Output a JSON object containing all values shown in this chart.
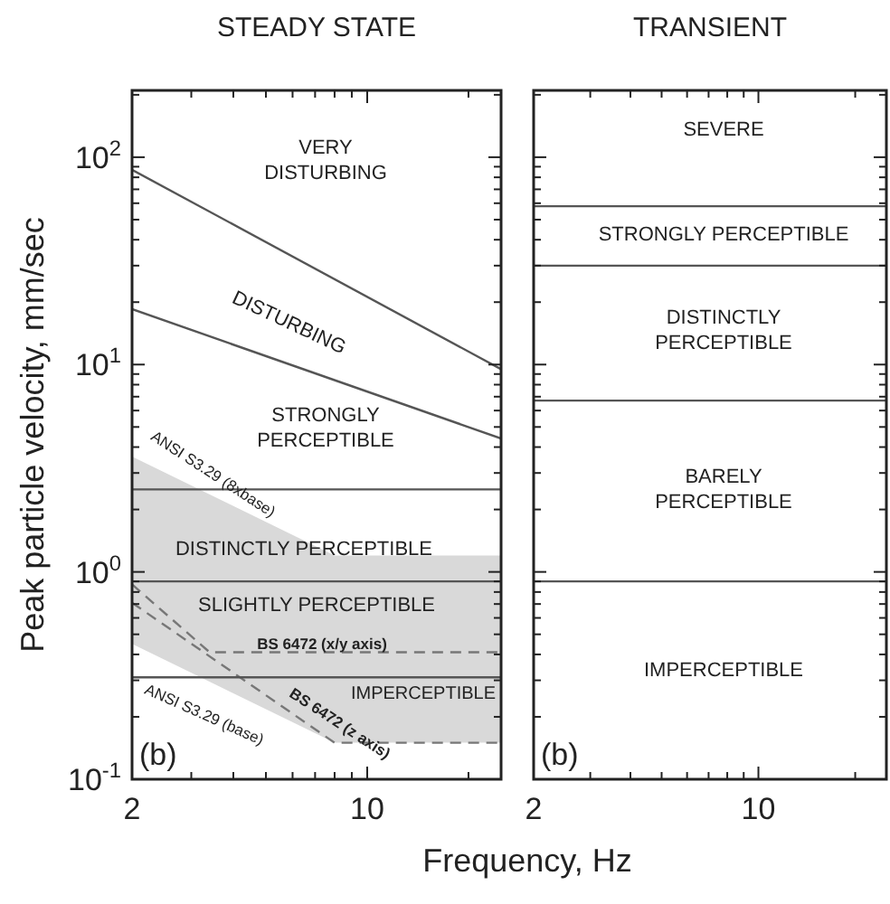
{
  "chart_data": [
    {
      "type": "line",
      "title": "STEADY STATE",
      "xlabel": "Frequency, Hz",
      "ylabel": "Peak particle velocity, mm/sec",
      "log": "xy",
      "xlim": [
        2,
        25
      ],
      "ylim": [
        0.1,
        210
      ],
      "xticks": [
        {
          "value": 2,
          "label": "2"
        },
        {
          "value": 3,
          "label": null
        },
        {
          "value": 4,
          "label": null
        },
        {
          "value": 5,
          "label": null
        },
        {
          "value": 6,
          "label": null
        },
        {
          "value": 7,
          "label": null
        },
        {
          "value": 8,
          "label": null
        },
        {
          "value": 9,
          "label": null
        },
        {
          "value": 10,
          "label": "10"
        },
        {
          "value": 20,
          "label": null
        }
      ],
      "yticks": [
        {
          "value": 0.1,
          "label": "10$^{-1}$"
        },
        {
          "value": 0.2,
          "label": null
        },
        {
          "value": 0.3,
          "label": null
        },
        {
          "value": 0.4,
          "label": null
        },
        {
          "value": 0.5,
          "label": null
        },
        {
          "value": 0.6,
          "label": null
        },
        {
          "value": 0.7,
          "label": null
        },
        {
          "value": 0.8,
          "label": null
        },
        {
          "value": 0.9,
          "label": null
        },
        {
          "value": 1,
          "label": "10$^{0}$"
        },
        {
          "value": 2,
          "label": null
        },
        {
          "value": 3,
          "label": null
        },
        {
          "value": 4,
          "label": null
        },
        {
          "value": 5,
          "label": null
        },
        {
          "value": 6,
          "label": null
        },
        {
          "value": 7,
          "label": null
        },
        {
          "value": 8,
          "label": null
        },
        {
          "value": 9,
          "label": null
        },
        {
          "value": 10,
          "label": "10$^{1}$"
        },
        {
          "value": 20,
          "label": null
        },
        {
          "value": 30,
          "label": null
        },
        {
          "value": 40,
          "label": null
        },
        {
          "value": 50,
          "label": null
        },
        {
          "value": 60,
          "label": null
        },
        {
          "value": 70,
          "label": null
        },
        {
          "value": 80,
          "label": null
        },
        {
          "value": 90,
          "label": null
        },
        {
          "value": 100,
          "label": "10$^{2}$"
        },
        {
          "value": 200,
          "label": null
        }
      ],
      "series": [
        {
          "type": "area",
          "color": "#d9d9d9",
          "x": [
            2,
            8,
            25
          ],
          "values": [
            3.6,
            1.2,
            1.2
          ]
        },
        {
          "type": "area",
          "color": "#ffffff",
          "x": [
            2,
            8,
            25
          ],
          "values": [
            0.45,
            0.15,
            0.15
          ]
        },
        {
          "type": "line",
          "color": "#555555",
          "x": [
            2,
            25
          ],
          "values": [
            87,
            9.5
          ]
        },
        {
          "type": "line",
          "color": "#555555",
          "x": [
            2,
            25
          ],
          "values": [
            18.5,
            4.4
          ]
        },
        {
          "type": "line",
          "color": "#777777",
          "line_style": "dashed",
          "x": [
            2,
            3.4,
            25
          ],
          "values": [
            0.87,
            0.41,
            0.41
          ]
        },
        {
          "type": "line",
          "color": "#777777",
          "line_style": "dashed",
          "x": [
            2,
            8,
            25
          ],
          "values": [
            0.71,
            0.15,
            0.15
          ]
        }
      ],
      "ref_lines": [
        {
          "axis": "y",
          "value": 2.5,
          "color": "#555555"
        },
        {
          "axis": "y",
          "value": 0.9,
          "color": "#555555"
        },
        {
          "axis": "y",
          "value": 0.31,
          "color": "#555555"
        }
      ],
      "annotations": [
        "VERY\nDISTURBING",
        "DISTURBING",
        "STRONGLY\nPERCEPTIBLE",
        "DISTINCTLY PERCEPTIBLE",
        "SLIGHTLY PERCEPTIBLE",
        "BS 6472 (x/y axis)",
        "IMPERCEPTIBLE",
        "ANSI S3.29 (8xbase)",
        "ANSI S3.29 (base)",
        "BS 6472 (z axis)",
        "(b)"
      ]
    },
    {
      "type": "line",
      "title": "TRANSIENT",
      "log": "xy",
      "xlim": [
        2,
        25
      ],
      "ylim": [
        0.1,
        210
      ],
      "tick_labels": "x",
      "xticks": [
        {
          "value": 2,
          "label": "2"
        },
        {
          "value": 3,
          "label": null
        },
        {
          "value": 4,
          "label": null
        },
        {
          "value": 5,
          "label": null
        },
        {
          "value": 6,
          "label": null
        },
        {
          "value": 7,
          "label": null
        },
        {
          "value": 8,
          "label": null
        },
        {
          "value": 9,
          "label": null
        },
        {
          "value": 10,
          "label": "10"
        },
        {
          "value": 20,
          "label": null
        }
      ],
      "yticks": [
        {
          "value": 0.1,
          "label": null
        },
        {
          "value": 0.2,
          "label": null
        },
        {
          "value": 0.3,
          "label": null
        },
        {
          "value": 0.4,
          "label": null
        },
        {
          "value": 0.5,
          "label": null
        },
        {
          "value": 0.6,
          "label": null
        },
        {
          "value": 0.7,
          "label": null
        },
        {
          "value": 0.8,
          "label": null
        },
        {
          "value": 0.9,
          "label": null
        },
        {
          "value": 1,
          "label": null
        },
        {
          "value": 2,
          "label": null
        },
        {
          "value": 3,
          "label": null
        },
        {
          "value": 4,
          "label": null
        },
        {
          "value": 5,
          "label": null
        },
        {
          "value": 6,
          "label": null
        },
        {
          "value": 7,
          "label": null
        },
        {
          "value": 8,
          "label": null
        },
        {
          "value": 9,
          "label": null
        },
        {
          "value": 10,
          "label": null
        },
        {
          "value": 20,
          "label": null
        },
        {
          "value": 30,
          "label": null
        },
        {
          "value": 40,
          "label": null
        },
        {
          "value": 50,
          "label": null
        },
        {
          "value": 60,
          "label": null
        },
        {
          "value": 70,
          "label": null
        },
        {
          "value": 80,
          "label": null
        },
        {
          "value": 90,
          "label": null
        },
        {
          "value": 100,
          "label": null
        },
        {
          "value": 200,
          "label": null
        }
      ],
      "ref_lines": [
        {
          "axis": "y",
          "value": 58,
          "color": "#555555"
        },
        {
          "axis": "y",
          "value": 30,
          "color": "#555555"
        },
        {
          "axis": "y",
          "value": 6.7,
          "color": "#555555"
        },
        {
          "axis": "y",
          "value": 0.9,
          "color": "#555555"
        }
      ],
      "annotations": [
        "SEVERE",
        "STRONGLY PERCEPTIBLE",
        "DISTINCTLY\nPERCEPTIBLE",
        "BARELY\nPERCEPTIBLE",
        "IMPERCEPTIBLE",
        "(b)"
      ]
    }
  ]
}
